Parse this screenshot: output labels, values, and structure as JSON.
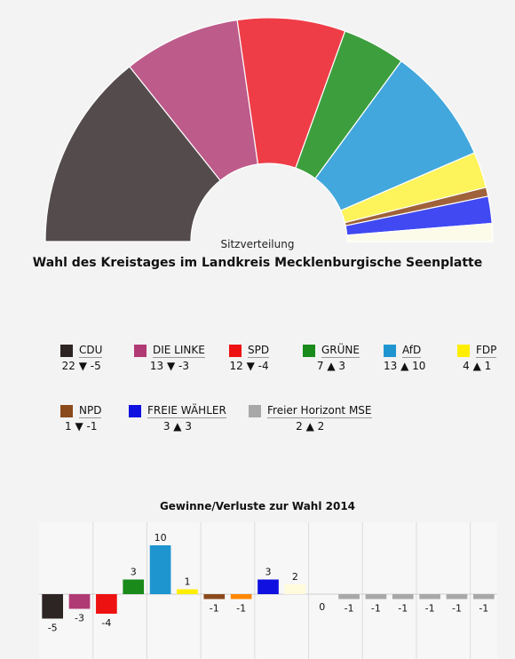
{
  "seat_chart": {
    "subtitle": "Sitzverteilung",
    "title": "Wahl des Kreistages im Landkreis Mecklenburgische Seenplatte"
  },
  "legend": [
    {
      "name": "CDU",
      "color": "#2d2424",
      "seats": "22",
      "arrow": "▼",
      "change": "-5"
    },
    {
      "name": "DIE LINKE",
      "color": "#b03a74",
      "seats": "13",
      "arrow": "▼",
      "change": "-3"
    },
    {
      "name": "SPD",
      "color": "#ee1111",
      "seats": "12",
      "arrow": "▼",
      "change": "-4"
    },
    {
      "name": "GRÜNE",
      "color": "#1a8a1a",
      "seats": "7",
      "arrow": "▲",
      "change": "3"
    },
    {
      "name": "AfD",
      "color": "#1f95d0",
      "seats": "13",
      "arrow": "▲",
      "change": "10"
    },
    {
      "name": "FDP",
      "color": "#ffee00",
      "seats": "4",
      "arrow": "▲",
      "change": "1"
    },
    {
      "name": "NPD",
      "color": "#8b4a1c",
      "seats": "1",
      "arrow": "▼",
      "change": "-1"
    },
    {
      "name": "FREIE WÄHLER",
      "color": "#1010e0",
      "seats": "3",
      "arrow": "▲",
      "change": "3"
    },
    {
      "name": "Freier Horizont MSE",
      "color": "#a8a8a8",
      "seats": "2",
      "arrow": "▲",
      "change": "2"
    }
  ],
  "chart_data": [
    {
      "type": "pie",
      "title": "Wahl des Kreistages im Landkreis Mecklenburgische Seenplatte",
      "subtitle": "Sitzverteilung",
      "categories": [
        "CDU",
        "DIE LINKE",
        "SPD",
        "GRÜNE",
        "AfD",
        "FDP",
        "NPD",
        "FREIE WÄHLER",
        "Freier Horizont MSE"
      ],
      "values": [
        22,
        13,
        12,
        7,
        13,
        4,
        1,
        3,
        2
      ],
      "colors": [
        "#544c4c",
        "#bd5b8b",
        "#ef3d48",
        "#3d9e3d",
        "#42a7dc",
        "#fdf35a",
        "#a0623a",
        "#4049f2",
        "#fcfbea"
      ],
      "shape": "semicircle"
    },
    {
      "type": "bar",
      "title": "Gewinne/Verluste zur Wahl 2014",
      "values": [
        -5,
        -3,
        -4,
        3,
        10,
        1,
        -1,
        -1,
        3,
        2,
        0,
        -1,
        -1,
        -1,
        -1,
        -1,
        -1
      ],
      "colors": [
        "#2d2424",
        "#b03a74",
        "#ee1111",
        "#1a8a1a",
        "#1f95d0",
        "#ffee00",
        "#8b4a1c",
        "#ff8800",
        "#1010e0",
        "#fffbdc",
        "#a8a8a8",
        "#a8a8a8",
        "#a8a8a8",
        "#a8a8a8",
        "#a8a8a8",
        "#a8a8a8",
        "#a8a8a8"
      ],
      "ylim": [
        -5,
        10
      ],
      "grid": true
    }
  ]
}
